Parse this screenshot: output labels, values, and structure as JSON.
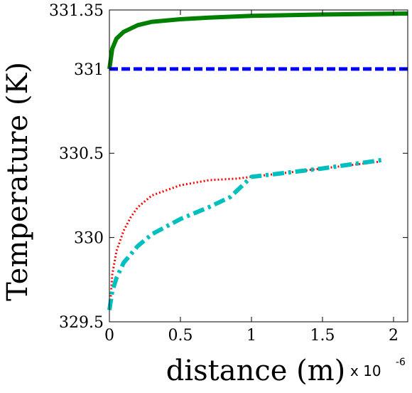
{
  "chart_data": {
    "type": "line",
    "title": "",
    "xlabel": "distance (m)",
    "ylabel": "Temperature (K)",
    "x_multiplier_label": "x 10",
    "x_multiplier_exponent": "-6",
    "xlim": [
      0,
      2.1
    ],
    "ylim": [
      329.5,
      331.35
    ],
    "x_ticks": [
      {
        "value": 0,
        "label": "0"
      },
      {
        "value": 0.5,
        "label": "0.5"
      },
      {
        "value": 1,
        "label": "1"
      },
      {
        "value": 1.5,
        "label": "1.5"
      },
      {
        "value": 2,
        "label": "2"
      }
    ],
    "y_ticks": [
      {
        "value": 329.5,
        "label": "329.5"
      },
      {
        "value": 330,
        "label": "330"
      },
      {
        "value": 330.5,
        "label": "330.5"
      },
      {
        "value": 331,
        "label": "331"
      },
      {
        "value": 331.35,
        "label": "331.35"
      }
    ],
    "grid": false,
    "legend": "none",
    "series": [
      {
        "color": "#008000",
        "style": "solid",
        "x": [
          0,
          0.02,
          0.05,
          0.1,
          0.2,
          0.3,
          0.5,
          0.7,
          1.0,
          1.5,
          2.0,
          2.1
        ],
        "y": [
          331.0,
          331.12,
          331.18,
          331.22,
          331.26,
          331.28,
          331.295,
          331.305,
          331.315,
          331.323,
          331.328,
          331.329
        ]
      },
      {
        "color": "#0000ff",
        "style": "dashed",
        "x": [
          0,
          2.1
        ],
        "y": [
          331.0,
          331.0
        ]
      },
      {
        "color": "#ff0000",
        "style": "dotted",
        "x": [
          0.01,
          0.02,
          0.05,
          0.1,
          0.15,
          0.2,
          0.3,
          0.5,
          0.7,
          0.9,
          1.0,
          1.5,
          1.9
        ],
        "y": [
          329.65,
          329.78,
          329.92,
          330.04,
          330.12,
          330.18,
          330.25,
          330.31,
          330.34,
          330.35,
          330.36,
          330.41,
          330.45
        ]
      },
      {
        "color": "#00bfbf",
        "style": "dashdot",
        "x": [
          0.0,
          0.02,
          0.05,
          0.1,
          0.2,
          0.3,
          0.5,
          0.7,
          0.85,
          0.95,
          1.0,
          1.5,
          1.92
        ],
        "y": [
          329.57,
          329.68,
          329.76,
          329.85,
          329.95,
          330.02,
          330.11,
          330.18,
          330.24,
          330.32,
          330.36,
          330.41,
          330.46
        ]
      }
    ]
  }
}
